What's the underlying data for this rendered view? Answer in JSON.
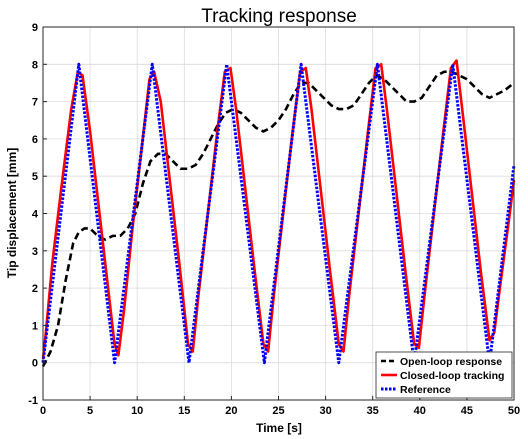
{
  "chart_data": {
    "type": "line",
    "title": "Tracking response",
    "xlabel": "Time [s]",
    "ylabel": "Tip displacement [mm]",
    "xlim": [
      0,
      50
    ],
    "ylim": [
      -1,
      9
    ],
    "xticks": [
      0,
      5,
      10,
      15,
      20,
      25,
      30,
      35,
      40,
      45,
      50
    ],
    "yticks": [
      -1,
      0,
      1,
      2,
      3,
      4,
      5,
      6,
      7,
      8,
      9
    ],
    "grid": true,
    "legend_position": "bottom-right",
    "series": [
      {
        "name": "Open-loop response",
        "color": "#000000",
        "style": "dashed",
        "x": [
          0,
          0.8,
          1.6,
          2.4,
          3.2,
          3.8,
          4.4,
          5.0,
          5.8,
          6.6,
          7.4,
          8.2,
          9.0,
          9.8,
          10.6,
          11.4,
          12.2,
          13.0,
          13.8,
          14.6,
          15.4,
          16.2,
          17.0,
          17.8,
          18.6,
          19.4,
          20.2,
          21.0,
          21.8,
          22.6,
          23.4,
          24.2,
          25.0,
          25.8,
          26.6,
          27.4,
          28.2,
          29.0,
          29.8,
          30.6,
          31.4,
          32.2,
          33.0,
          33.8,
          34.6,
          35.4,
          36.2,
          37.0,
          37.8,
          38.6,
          39.4,
          40.2,
          41.0,
          41.8,
          42.6,
          43.4,
          44.2,
          45.0,
          45.8,
          46.6,
          47.4,
          48.2,
          49.0,
          50
        ],
        "y": [
          -0.1,
          0.3,
          1.0,
          2.2,
          3.2,
          3.5,
          3.6,
          3.6,
          3.4,
          3.3,
          3.4,
          3.4,
          3.6,
          4.0,
          4.8,
          5.4,
          5.6,
          5.6,
          5.4,
          5.2,
          5.2,
          5.3,
          5.6,
          6.0,
          6.4,
          6.7,
          6.8,
          6.7,
          6.5,
          6.3,
          6.2,
          6.3,
          6.5,
          6.8,
          7.2,
          7.5,
          7.5,
          7.3,
          7.1,
          6.9,
          6.8,
          6.8,
          6.9,
          7.2,
          7.5,
          7.7,
          7.6,
          7.4,
          7.2,
          7.0,
          7.0,
          7.1,
          7.4,
          7.7,
          7.8,
          7.8,
          7.7,
          7.6,
          7.4,
          7.2,
          7.1,
          7.2,
          7.3,
          7.5
        ]
      },
      {
        "name": "Closed-loop tracking",
        "color": "#ff0000",
        "style": "solid",
        "x": [
          0,
          0.3,
          1.0,
          2.0,
          3.0,
          3.7,
          4.2,
          5.0,
          6.0,
          7.0,
          7.6,
          8.0,
          8.6,
          9.5,
          10.5,
          11.3,
          11.8,
          12.5,
          13.5,
          14.5,
          15.4,
          15.9,
          16.5,
          17.5,
          18.5,
          19.3,
          19.9,
          20.5,
          21.5,
          22.5,
          23.4,
          23.9,
          24.5,
          25.5,
          26.5,
          27.3,
          27.9,
          28.5,
          29.5,
          30.5,
          31.4,
          31.9,
          32.5,
          33.5,
          34.5,
          35.3,
          35.9,
          36.5,
          37.5,
          38.5,
          39.4,
          39.9,
          40.5,
          41.5,
          42.5,
          43.3,
          43.9,
          44.5,
          45.5,
          46.5,
          47.4,
          47.9,
          48.5,
          49.5,
          50
        ],
        "y": [
          0.1,
          0.8,
          2.7,
          4.8,
          6.8,
          7.8,
          7.7,
          6.2,
          4.0,
          1.8,
          0.5,
          0.2,
          1.4,
          3.6,
          5.8,
          7.6,
          7.8,
          7.0,
          4.8,
          2.6,
          0.5,
          0.3,
          1.8,
          4.0,
          6.2,
          7.8,
          7.9,
          6.8,
          4.6,
          2.4,
          0.5,
          0.3,
          1.8,
          4.0,
          6.2,
          7.8,
          7.9,
          6.8,
          4.6,
          2.4,
          0.5,
          0.3,
          1.8,
          4.0,
          6.2,
          7.9,
          8.0,
          6.8,
          4.6,
          2.4,
          0.5,
          0.4,
          1.8,
          4.0,
          6.2,
          7.9,
          8.1,
          6.8,
          4.6,
          2.4,
          0.6,
          0.8,
          2.0,
          3.9,
          4.9
        ]
      },
      {
        "name": "Reference",
        "color": "#0000ff",
        "style": "dotted",
        "x": [
          0,
          3.8,
          7.6,
          11.6,
          15.5,
          19.5,
          23.5,
          27.4,
          31.4,
          35.5,
          39.4,
          43.5,
          47.4,
          50
        ],
        "y": [
          0.0,
          8.0,
          0.0,
          8.0,
          0.0,
          8.0,
          0.0,
          8.0,
          0.0,
          8.0,
          0.0,
          8.0,
          0.0,
          5.3
        ]
      }
    ]
  }
}
